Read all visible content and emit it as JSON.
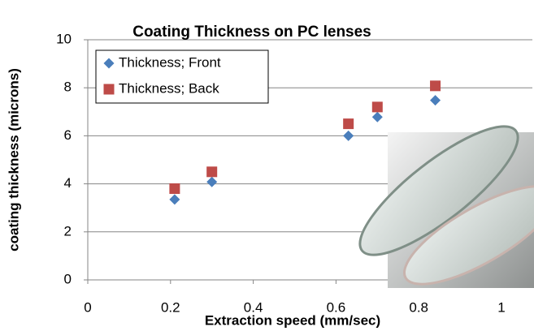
{
  "chart_data": {
    "type": "scatter",
    "title": "Coating Thickness on PC lenses",
    "x_label": "Extraction speed (mm/sec)",
    "y_label": "coating thickness (microns)",
    "x": [
      0.21,
      0.3,
      0.63,
      0.7,
      0.84
    ],
    "series": [
      {
        "name": "Thickness; Front",
        "color": "#4a7ebb",
        "marker": "diamond",
        "values": [
          3.35,
          4.08,
          6.0,
          6.78,
          7.48
        ]
      },
      {
        "name": "Thickness; Back",
        "color": "#be4b48",
        "marker": "square",
        "values": [
          3.8,
          4.5,
          6.5,
          7.2,
          8.08
        ]
      }
    ],
    "xlim": [
      0,
      1
    ],
    "xticks": [
      0,
      0.2,
      0.4,
      0.6,
      0.8,
      1
    ],
    "ylim": [
      0,
      10
    ],
    "yticks": [
      0,
      2,
      4,
      6,
      8,
      10
    ],
    "grid": true
  }
}
